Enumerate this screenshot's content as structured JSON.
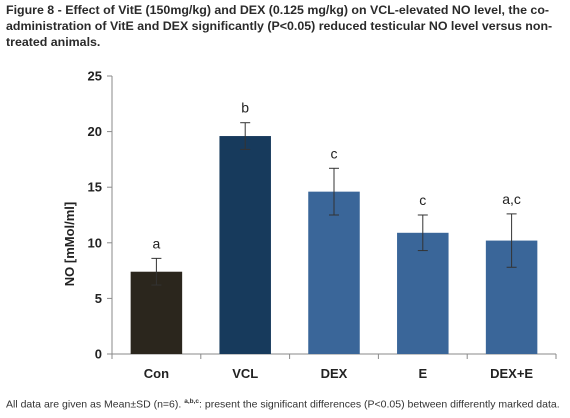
{
  "caption": "Figure 8 - Effect of VitE (150mg/kg) and DEX (0.125 mg/kg) on VCL-elevated NO level, the co-administration of VitE and DEX significantly (P<0.05) reduced testicular NO level versus non-treated animals.",
  "footnote": {
    "prefix": "All data are given as Mean±SD (n=6). ",
    "letters": "a,b,c",
    "suffix": ": present the significant differences (P<0.05) between differently marked data."
  },
  "chart_data": {
    "type": "bar",
    "categories": [
      "Con",
      "VCL",
      "DEX",
      "E",
      "DEX+E"
    ],
    "values": [
      7.4,
      19.6,
      14.6,
      10.9,
      10.2
    ],
    "errors": [
      1.2,
      1.2,
      2.1,
      1.6,
      2.4
    ],
    "significance": [
      "a",
      "b",
      "c",
      "c",
      "a,c"
    ],
    "colors": [
      "#2b261d",
      "#173a5c",
      "#3a6699",
      "#3a6699",
      "#3a6699"
    ],
    "ylabel": "NO [mMol/ml]",
    "xlabel": "",
    "ylim": [
      0,
      25
    ],
    "yticks": [
      0,
      5,
      10,
      15,
      20,
      25
    ],
    "grid": false,
    "legend": "none"
  }
}
